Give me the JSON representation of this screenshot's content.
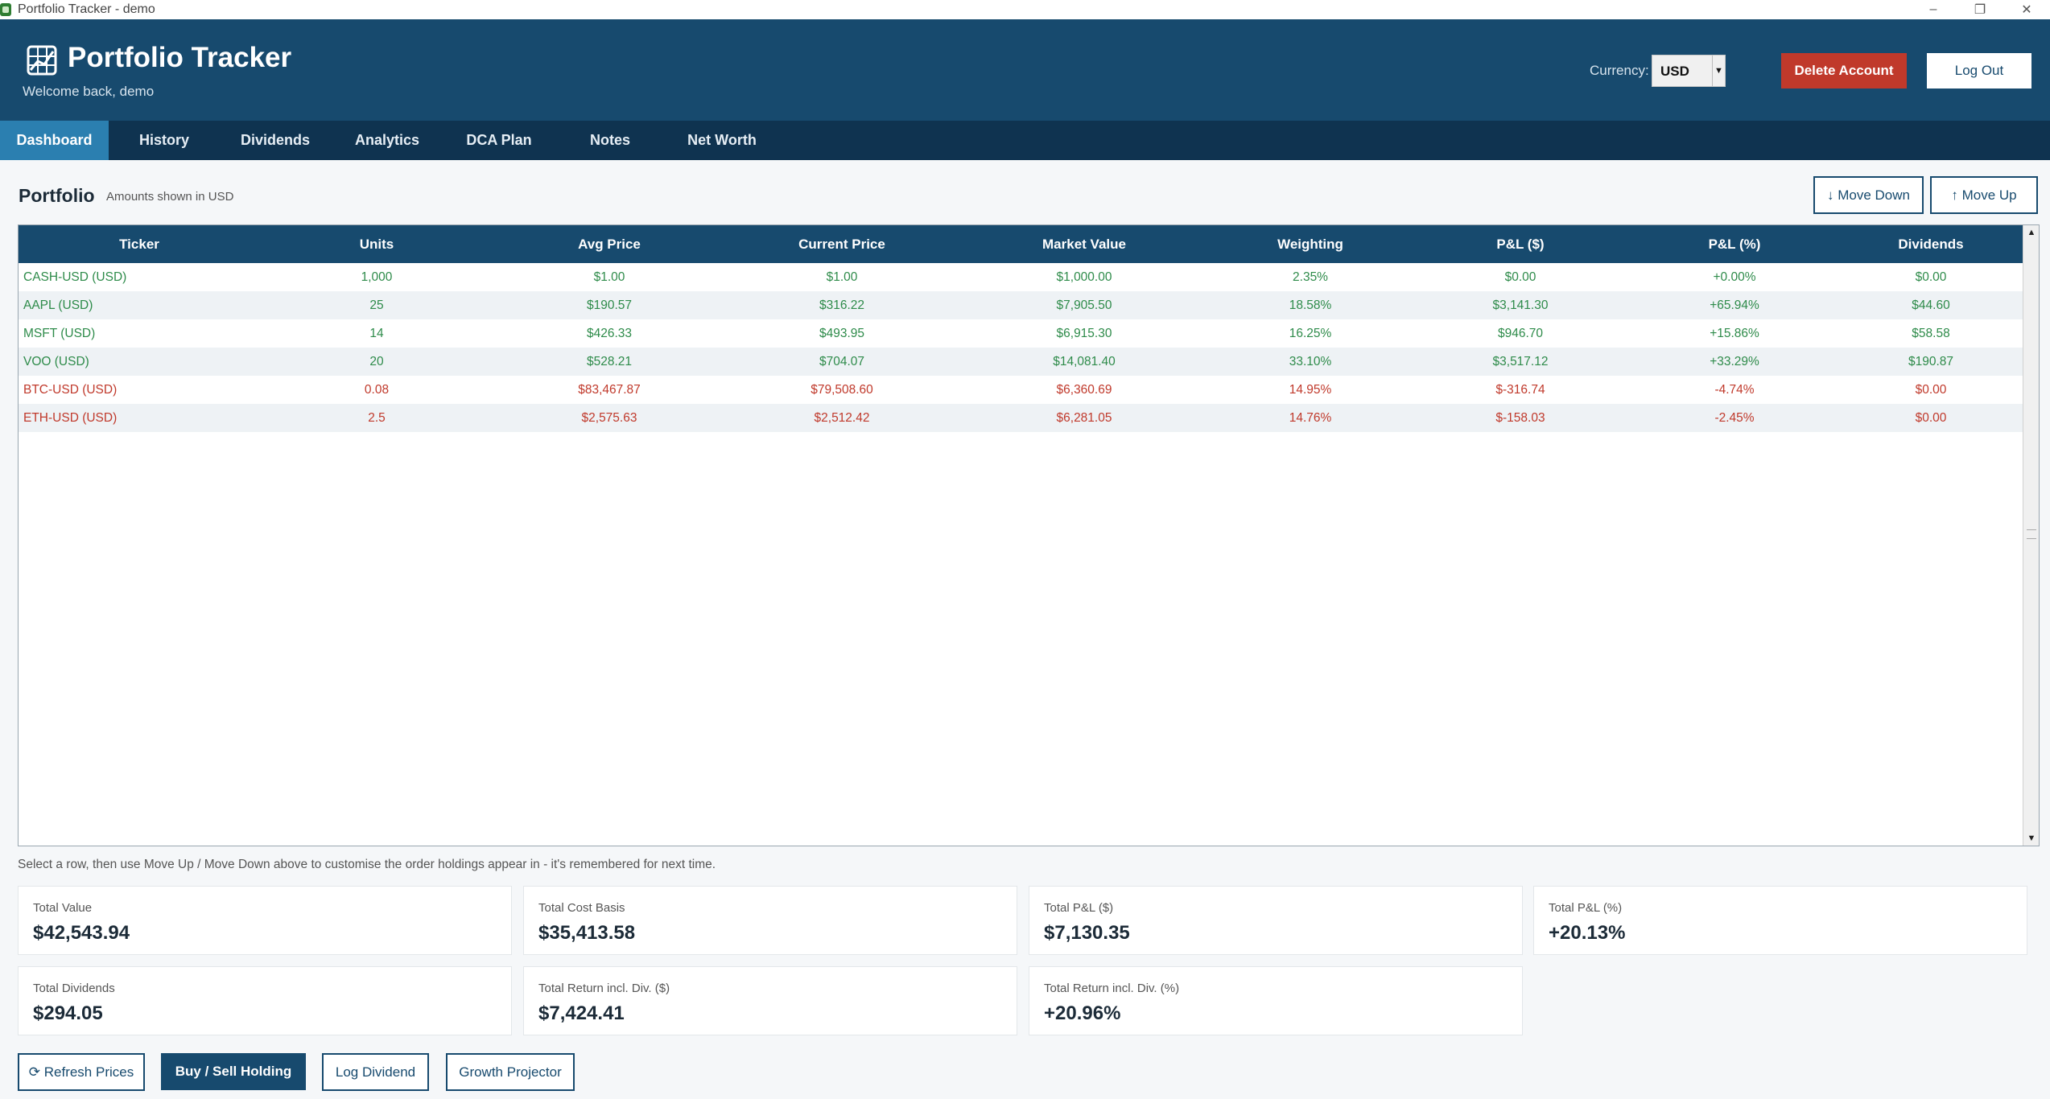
{
  "window": {
    "title": "Portfolio Tracker - demo",
    "minimize": "–",
    "restore": "❐",
    "close": "✕"
  },
  "header": {
    "app_title": "Portfolio Tracker",
    "welcome": "Welcome back, demo",
    "currency_label": "Currency:",
    "currency_value": "USD",
    "delete_account": "Delete Account",
    "log_out": "Log Out"
  },
  "tabs": [
    {
      "label": "Dashboard",
      "active": true
    },
    {
      "label": "History"
    },
    {
      "label": "Dividends"
    },
    {
      "label": "Analytics"
    },
    {
      "label": "DCA Plan"
    },
    {
      "label": "Notes"
    },
    {
      "label": "Net Worth"
    }
  ],
  "portfolio": {
    "title": "Portfolio",
    "subtitle": "Amounts shown in USD",
    "move_down": "↓ Move Down",
    "move_up": "↑ Move Up",
    "columns": [
      "Ticker",
      "Units",
      "Avg Price",
      "Current Price",
      "Market Value",
      "Weighting",
      "P&L ($)",
      "P&L (%)",
      "Dividends"
    ],
    "rows": [
      {
        "status": "gain",
        "cells": [
          "CASH-USD (USD)",
          "1,000",
          "$1.00",
          "$1.00",
          "$1,000.00",
          "2.35%",
          "$0.00",
          "+0.00%",
          "$0.00"
        ]
      },
      {
        "status": "gain",
        "cells": [
          "AAPL (USD)",
          "25",
          "$190.57",
          "$316.22",
          "$7,905.50",
          "18.58%",
          "$3,141.30",
          "+65.94%",
          "$44.60"
        ]
      },
      {
        "status": "gain",
        "cells": [
          "MSFT (USD)",
          "14",
          "$426.33",
          "$493.95",
          "$6,915.30",
          "16.25%",
          "$946.70",
          "+15.86%",
          "$58.58"
        ]
      },
      {
        "status": "gain",
        "cells": [
          "VOO (USD)",
          "20",
          "$528.21",
          "$704.07",
          "$14,081.40",
          "33.10%",
          "$3,517.12",
          "+33.29%",
          "$190.87"
        ]
      },
      {
        "status": "loss",
        "cells": [
          "BTC-USD (USD)",
          "0.08",
          "$83,467.87",
          "$79,508.60",
          "$6,360.69",
          "14.95%",
          "$-316.74",
          "-4.74%",
          "$0.00"
        ]
      },
      {
        "status": "loss",
        "cells": [
          "ETH-USD (USD)",
          "2.5",
          "$2,575.63",
          "$2,512.42",
          "$6,281.05",
          "14.76%",
          "$-158.03",
          "-2.45%",
          "$0.00"
        ]
      }
    ],
    "hint": "Select a row, then use Move Up / Move Down above to customise the order holdings appear in - it's remembered for next time."
  },
  "summary": [
    {
      "label": "Total Value",
      "value": "$42,543.94"
    },
    {
      "label": "Total Cost Basis",
      "value": "$35,413.58"
    },
    {
      "label": "Total P&L ($)",
      "value": "$7,130.35"
    },
    {
      "label": "Total P&L (%)",
      "value": "+20.13%"
    },
    {
      "label": "Total Dividends",
      "value": "$294.05"
    },
    {
      "label": "Total Return incl. Div. ($)",
      "value": "$7,424.41"
    },
    {
      "label": "Total Return incl. Div. (%)",
      "value": "+20.96%"
    }
  ],
  "actions": {
    "refresh": "⟳ Refresh Prices",
    "buy_sell": "Buy / Sell Holding",
    "log_dividend": "Log Dividend",
    "growth_projector": "Growth Projector"
  },
  "colors": {
    "header_bg": "#174a6e",
    "tab_bar_bg": "#0f3350",
    "active_tab": "#2b7fb0",
    "gain": "#2e8b4a",
    "loss": "#c0392b",
    "danger_button": "#c0392b"
  }
}
